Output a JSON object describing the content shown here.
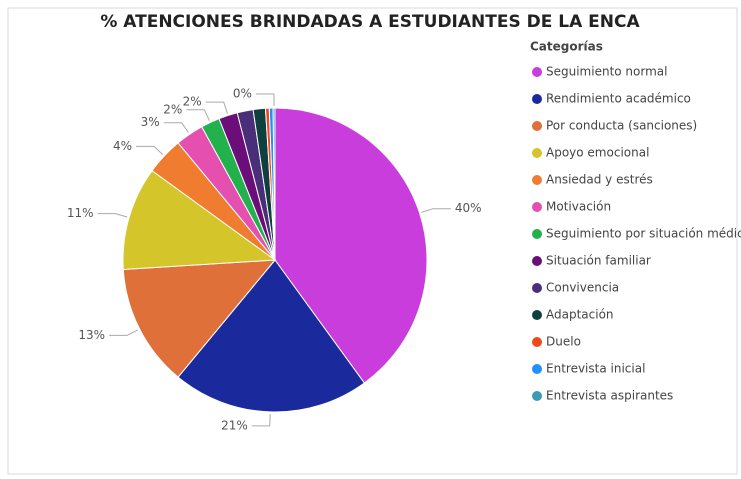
{
  "chart_data": {
    "type": "pie",
    "title": "% ATENCIONES BRINDADAS A ESTUDIANTES DE LA ENCA",
    "legend_title": "Categorías",
    "legend_position": "right",
    "categories": [
      "Seguimiento normal",
      "Rendimiento académico",
      "Por conducta (sanciones)",
      "Apoyo emocional",
      "Ansiedad y estrés",
      "Motivación",
      "Seguimiento por situación médica",
      "Situación familiar",
      "Convivencia",
      "Adaptación",
      "Duelo",
      "Entrevista inicial",
      "Entrevista aspirantes"
    ],
    "values": [
      40,
      21,
      13,
      11,
      4,
      3,
      2,
      2,
      1.7,
      1.3,
      0.4,
      0.4,
      0.2
    ],
    "value_labels": [
      "40%",
      "21%",
      "13%",
      "11%",
      "4%",
      "3%",
      "2%",
      "2%",
      null,
      null,
      null,
      null,
      "0%"
    ],
    "colors": [
      "#c83ddc",
      "#1a2a9c",
      "#e0703a",
      "#d4c62a",
      "#f07c30",
      "#e44fb0",
      "#22b14c",
      "#6b0e7a",
      "#4b2e7a",
      "#0f4040",
      "#f04a1a",
      "#1e90ff",
      "#3a9ab8"
    ]
  }
}
